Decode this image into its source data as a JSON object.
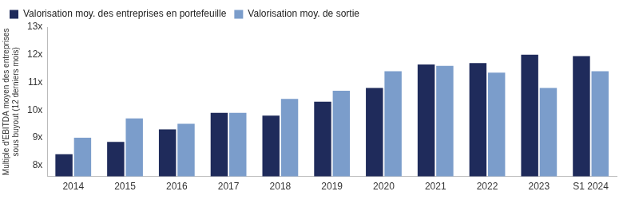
{
  "chart_data": {
    "type": "bar",
    "y_label": [
      "Multiple d'EBITDA moyen des entreprises",
      "sous buyout (12 derniers mois)"
    ],
    "categories": [
      "2014",
      "2015",
      "2016",
      "2017",
      "2018",
      "2019",
      "2020",
      "2021",
      "2022",
      "2023",
      "S1 2024"
    ],
    "series": [
      {
        "name": "Valorisation moy. des entreprises en portefeuille",
        "color": "#1f2b5b",
        "values": [
          8.4,
          8.85,
          9.3,
          9.9,
          9.8,
          10.3,
          10.8,
          11.65,
          11.7,
          12.0,
          11.95
        ]
      },
      {
        "name": "Valorisation moy. de sortie",
        "color": "#7b9dcb",
        "values": [
          9.0,
          9.7,
          9.5,
          9.9,
          10.4,
          10.7,
          11.4,
          11.6,
          11.35,
          10.8,
          11.4
        ]
      }
    ],
    "ylim": [
      7.6,
      13
    ],
    "yticks": [
      {
        "value": 8,
        "label": "8x"
      },
      {
        "value": 9,
        "label": "9x"
      },
      {
        "value": 10,
        "label": "10x"
      },
      {
        "value": 11,
        "label": "11x"
      },
      {
        "value": 12,
        "label": "12x"
      },
      {
        "value": 13,
        "label": "13x"
      }
    ],
    "grid": false,
    "legend": "top-left"
  }
}
